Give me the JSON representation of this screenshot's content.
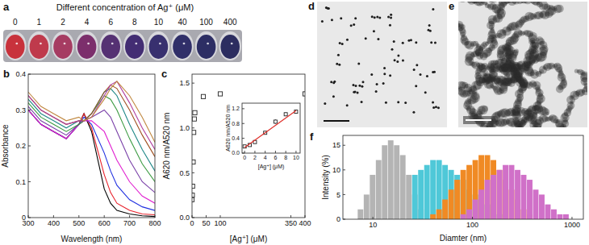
{
  "photo": {
    "title": "a",
    "caption": "Different concentration of Ag⁺ (μM)",
    "concentrations": [
      0,
      1,
      2,
      4,
      6,
      8,
      10,
      40,
      100,
      400
    ],
    "colors": [
      "#c8323c",
      "#bf3a4c",
      "#a63c62",
      "#7c2f6c",
      "#553173",
      "#432d73",
      "#38306f",
      "#302f69",
      "#2d2e64",
      "#2c2d60"
    ]
  },
  "images": [
    {
      "title": "d"
    },
    {
      "title": "e"
    }
  ],
  "chart_data": [
    {
      "type": "line",
      "title": "b",
      "xlabel": "Wavelength (nm)",
      "ylabel": "Absorbance",
      "x": [
        300,
        350,
        400,
        450,
        500,
        520,
        550,
        600,
        625,
        650,
        700,
        750,
        800
      ],
      "series": [
        {
          "color": "#000000",
          "values": [
            0.3,
            0.26,
            0.24,
            0.22,
            0.26,
            0.29,
            0.24,
            0.08,
            0.04,
            0.02,
            0.01,
            0.005,
            0.003
          ]
        },
        {
          "color": "#e8202a",
          "values": [
            0.3,
            0.26,
            0.24,
            0.22,
            0.26,
            0.29,
            0.25,
            0.12,
            0.07,
            0.04,
            0.02,
            0.01,
            0.008
          ]
        },
        {
          "color": "#2030e0",
          "values": [
            0.3,
            0.26,
            0.24,
            0.22,
            0.26,
            0.28,
            0.26,
            0.18,
            0.13,
            0.09,
            0.05,
            0.03,
            0.02
          ]
        },
        {
          "color": "#e020d0",
          "values": [
            0.3,
            0.26,
            0.24,
            0.22,
            0.26,
            0.27,
            0.27,
            0.24,
            0.2,
            0.16,
            0.1,
            0.06,
            0.04
          ]
        },
        {
          "color": "#7a40a8",
          "values": [
            0.31,
            0.27,
            0.25,
            0.23,
            0.26,
            0.27,
            0.28,
            0.3,
            0.28,
            0.24,
            0.16,
            0.1,
            0.07
          ]
        },
        {
          "color": "#3a9a40",
          "values": [
            0.32,
            0.28,
            0.26,
            0.24,
            0.26,
            0.27,
            0.29,
            0.34,
            0.33,
            0.3,
            0.22,
            0.15,
            0.1
          ]
        },
        {
          "color": "#208888",
          "values": [
            0.33,
            0.29,
            0.27,
            0.25,
            0.27,
            0.27,
            0.29,
            0.35,
            0.36,
            0.34,
            0.26,
            0.19,
            0.13
          ]
        },
        {
          "color": "#a05020",
          "values": [
            0.34,
            0.3,
            0.28,
            0.26,
            0.27,
            0.27,
            0.29,
            0.35,
            0.37,
            0.36,
            0.3,
            0.23,
            0.17
          ]
        },
        {
          "color": "#b040a0",
          "values": [
            0.34,
            0.3,
            0.28,
            0.26,
            0.27,
            0.27,
            0.28,
            0.34,
            0.37,
            0.38,
            0.32,
            0.25,
            0.19
          ]
        },
        {
          "color": "#c08840",
          "values": [
            0.35,
            0.31,
            0.29,
            0.27,
            0.28,
            0.27,
            0.28,
            0.33,
            0.36,
            0.38,
            0.34,
            0.28,
            0.21
          ]
        }
      ],
      "xlim": [
        300,
        800
      ],
      "ylim": [
        0,
        0.4
      ],
      "xticks": [
        300,
        400,
        500,
        600,
        700,
        800
      ],
      "yticks": [
        0,
        0.1,
        0.2,
        0.3,
        0.4
      ]
    },
    {
      "type": "scatter",
      "title": "c",
      "xlabel": "[Ag⁺] (μM)",
      "ylabel": "A620 nm/A520 nm",
      "x": [
        0,
        1,
        2,
        4,
        6,
        8,
        10,
        40,
        100,
        400
      ],
      "values": [
        0.2,
        0.25,
        0.35,
        0.62,
        0.95,
        1.1,
        1.17,
        1.35,
        1.38,
        1.38
      ],
      "color": "#222222",
      "marker": "square",
      "xlim": [
        0,
        400
      ],
      "ylim": [
        0,
        1.6
      ],
      "xticks": [
        0,
        50,
        100,
        350,
        400
      ],
      "yticks": [
        {
          "value": 0,
          "label": "0.0"
        },
        0.5,
        {
          "value": 1,
          "label": "1.0"
        },
        1.5
      ]
    },
    {
      "type": "scatter",
      "xlabel": "[Ag⁺] (μM)",
      "ylabel": "A620 nm/A520 nm",
      "series": [
        {
          "type": "scatter",
          "marker": "square",
          "color": "#222222",
          "x": [
            0,
            1,
            2,
            4,
            6,
            8,
            10
          ],
          "values": [
            0.18,
            0.22,
            0.3,
            0.55,
            0.85,
            1.05,
            1.12
          ],
          "errors": [
            0.02,
            0.02,
            0.03,
            0.03,
            0.06,
            0.05,
            0.05
          ]
        },
        {
          "type": "line",
          "color": "#e0302a",
          "x": [
            0,
            10
          ],
          "values": [
            0.15,
            1.15
          ]
        }
      ],
      "xlim": [
        -0.5,
        10.8
      ],
      "ylim": [
        0,
        1.35
      ],
      "xticks": [
        0,
        2,
        4,
        6,
        8,
        10
      ],
      "yticks": [
        {
          "value": 0,
          "label": "0.0"
        },
        0.4,
        0.8,
        1.2
      ]
    },
    {
      "type": "histogram",
      "title": "f",
      "xlabel": "Diamter (nm)",
      "ylabel": "Intensity (%)",
      "log": "x",
      "series": [
        {
          "color": "#b4b4b4",
          "bins": [
            7.0,
            8.05,
            9.26,
            10.65,
            12.24,
            14.08,
            16.19,
            18.62,
            21.41,
            24.63,
            28.32,
            32.57
          ],
          "values": [
            2,
            5,
            9,
            12,
            15,
            16,
            15,
            13,
            9,
            5,
            2
          ]
        },
        {
          "color": "#4fc8d8",
          "bins": [
            24.63,
            28.32,
            32.57,
            37.45,
            43.07,
            49.53,
            56.96,
            65.51,
            75.33,
            86.63,
            99.63,
            114.57,
            131.76,
            151.52,
            174.25,
            200.38
          ],
          "values": [
            9,
            10,
            11,
            12,
            12,
            11,
            10,
            9,
            8,
            6,
            5,
            4,
            3,
            2,
            1
          ]
        },
        {
          "color": "#f08a24",
          "bins": [
            37.45,
            43.07,
            49.53,
            56.96,
            65.51,
            75.33,
            86.63,
            99.63,
            114.57,
            131.76,
            151.52,
            174.25,
            200.38,
            230.44,
            265.0,
            304.76,
            350.47,
            403.04
          ],
          "values": [
            1,
            2,
            4,
            6,
            8,
            10,
            11,
            12,
            13,
            13,
            12,
            10,
            8,
            6,
            4,
            2,
            1
          ]
        },
        {
          "color": "#d070c8",
          "bins": [
            75.33,
            86.63,
            99.63,
            114.57,
            131.76,
            151.52,
            174.25,
            200.38,
            230.44,
            265.0,
            304.76,
            350.47,
            403.04,
            463.5,
            533.02,
            612.97,
            704.92,
            810.66,
            932.26
          ],
          "values": [
            1,
            2,
            4,
            6,
            8,
            9,
            10,
            11,
            11,
            10,
            9,
            8,
            6,
            5,
            3,
            2,
            1,
            1
          ]
        }
      ],
      "xlim": [
        5,
        1300
      ],
      "ylim": [
        0,
        17
      ],
      "xticks": [
        10,
        100,
        1000
      ],
      "yticks": [
        0,
        5,
        10,
        15
      ]
    }
  ]
}
